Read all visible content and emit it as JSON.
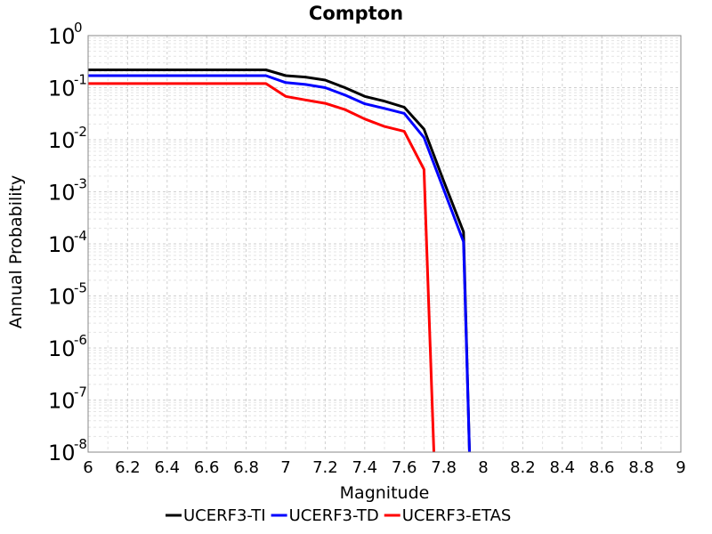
{
  "chart_data": {
    "type": "line",
    "title": "Compton",
    "xlabel": "Magnitude",
    "ylabel": "Annual Probability",
    "xlim": [
      6,
      9
    ],
    "ylim": [
      1e-08,
      1
    ],
    "yscale": "log",
    "grid": true,
    "legend_position": "bottom",
    "x_ticks": [
      "6",
      "6.2",
      "6.4",
      "6.6",
      "6.8",
      "7",
      "7.2",
      "7.4",
      "7.6",
      "7.8",
      "8",
      "8.2",
      "8.4",
      "8.6",
      "8.8",
      "9"
    ],
    "y_ticks": [
      {
        "base": "10",
        "exp": "0"
      },
      {
        "base": "10",
        "exp": "-1"
      },
      {
        "base": "10",
        "exp": "-2"
      },
      {
        "base": "10",
        "exp": "-3"
      },
      {
        "base": "10",
        "exp": "-4"
      },
      {
        "base": "10",
        "exp": "-5"
      },
      {
        "base": "10",
        "exp": "-6"
      },
      {
        "base": "10",
        "exp": "-7"
      },
      {
        "base": "10",
        "exp": "-8"
      }
    ],
    "series": [
      {
        "name": "UCERF3-TI",
        "color": "#000000",
        "x": [
          6.0,
          6.1,
          6.2,
          6.3,
          6.4,
          6.5,
          6.6,
          6.7,
          6.8,
          6.9,
          7.0,
          7.1,
          7.2,
          7.3,
          7.4,
          7.5,
          7.6,
          7.7,
          7.8,
          7.9,
          7.93
        ],
        "y": [
          0.22,
          0.22,
          0.22,
          0.22,
          0.22,
          0.22,
          0.22,
          0.22,
          0.22,
          0.22,
          0.17,
          0.16,
          0.14,
          0.1,
          0.068,
          0.055,
          0.042,
          0.016,
          0.0016,
          0.00017,
          1e-08
        ]
      },
      {
        "name": "UCERF3-TD",
        "color": "#0000ff",
        "x": [
          6.0,
          6.1,
          6.2,
          6.3,
          6.4,
          6.5,
          6.6,
          6.7,
          6.8,
          6.9,
          7.0,
          7.1,
          7.2,
          7.3,
          7.4,
          7.5,
          7.6,
          7.7,
          7.8,
          7.9,
          7.93
        ],
        "y": [
          0.17,
          0.17,
          0.17,
          0.17,
          0.17,
          0.17,
          0.17,
          0.17,
          0.17,
          0.17,
          0.125,
          0.115,
          0.1,
          0.072,
          0.049,
          0.04,
          0.032,
          0.011,
          0.0011,
          0.00011,
          1e-08
        ]
      },
      {
        "name": "UCERF3-ETAS",
        "color": "#ff0000",
        "x": [
          6.0,
          6.1,
          6.2,
          6.3,
          6.4,
          6.5,
          6.6,
          6.7,
          6.8,
          6.9,
          7.0,
          7.1,
          7.2,
          7.3,
          7.4,
          7.5,
          7.6,
          7.7,
          7.75
        ],
        "y": [
          0.12,
          0.12,
          0.12,
          0.12,
          0.12,
          0.12,
          0.12,
          0.12,
          0.12,
          0.12,
          0.068,
          0.058,
          0.05,
          0.038,
          0.025,
          0.018,
          0.0145,
          0.0027,
          1e-08
        ]
      }
    ]
  }
}
